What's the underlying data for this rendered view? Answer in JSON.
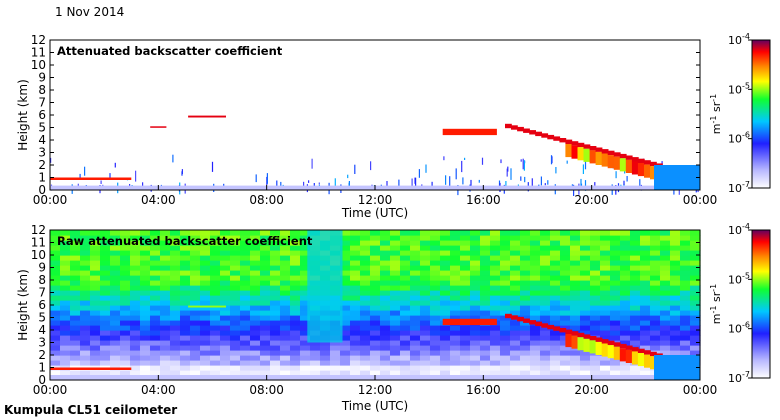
{
  "date_label": "1 Nov 2014",
  "instrument_label": "Kumpula CL51 ceilometer",
  "chart_data": [
    {
      "type": "heatmap",
      "title": "Attenuated backscatter coefficient",
      "xlabel": "Time (UTC)",
      "ylabel": "Height (km)",
      "xticks": [
        "00:00",
        "04:00",
        "08:00",
        "12:00",
        "16:00",
        "20:00",
        "00:00"
      ],
      "xlim_hours": [
        0,
        24
      ],
      "ylim_km": [
        0,
        12
      ],
      "yticks": [
        0,
        1,
        2,
        3,
        4,
        5,
        6,
        7,
        8,
        9,
        10,
        11,
        12
      ],
      "colorbar": {
        "label": "m-1 sr-1",
        "ticks": [
          "10-7",
          "10-6",
          "10-5",
          "10-4"
        ],
        "log_range": [
          -7,
          -4
        ]
      },
      "features": [
        {
          "name": "boundary-layer",
          "t0": 0.0,
          "t1": 24.0,
          "h0": 0.0,
          "h1": 0.35,
          "logb": -6.7
        },
        {
          "name": "low-cloud-early",
          "t0": 0.0,
          "t1": 3.0,
          "h0": 0.8,
          "h1": 1.0,
          "logb": -4.3
        },
        {
          "name": "cloud-0500",
          "t0": 3.7,
          "t1": 4.3,
          "h0": 5.0,
          "h1": 5.1,
          "logb": -4.2
        },
        {
          "name": "cloud-0600",
          "t0": 5.1,
          "t1": 6.5,
          "h0": 5.8,
          "h1": 5.95,
          "logb": -4.2
        },
        {
          "name": "frontal-cloud-a",
          "t0": 14.5,
          "t1": 16.5,
          "h0": 4.4,
          "h1": 4.9,
          "logb": -4.3
        },
        {
          "name": "frontal-cloud-b",
          "t0": 16.8,
          "t1": 22.6,
          "h0": 1.0,
          "h1": 5.3,
          "logb": -5.2
        },
        {
          "name": "rain-shaft",
          "t0": 22.3,
          "t1": 24.0,
          "h0": 0.0,
          "h1": 2.0,
          "logb": -5.8
        }
      ]
    },
    {
      "type": "heatmap",
      "title": "Raw attenuated backscatter coefficient",
      "xlabel": "Time (UTC)",
      "ylabel": "Height (km)",
      "xticks": [
        "00:00",
        "04:00",
        "08:00",
        "12:00",
        "16:00",
        "20:00",
        "00:00"
      ],
      "xlim_hours": [
        0,
        24
      ],
      "ylim_km": [
        0,
        12
      ],
      "yticks": [
        0,
        1,
        2,
        3,
        4,
        5,
        6,
        7,
        8,
        9,
        10,
        11,
        12
      ],
      "colorbar": {
        "label": "m-1 sr-1",
        "ticks": [
          "10-7",
          "10-6",
          "10-5",
          "10-4"
        ],
        "log_range": [
          -7,
          -4
        ]
      },
      "noise_background": "noise increasing with height, green above ~4 km",
      "features": [
        {
          "name": "boundary-layer",
          "t0": 0.0,
          "t1": 24.0,
          "h0": 0.0,
          "h1": 0.4,
          "logb": -6.7
        },
        {
          "name": "low-cloud-early",
          "t0": 0.0,
          "t1": 3.0,
          "h0": 0.8,
          "h1": 1.0,
          "logb": -4.3
        },
        {
          "name": "cloud-0600",
          "t0": 5.1,
          "t1": 6.5,
          "h0": 5.8,
          "h1": 5.95,
          "logb": -5.0
        },
        {
          "name": "noise-column",
          "t0": 9.5,
          "t1": 10.8,
          "h0": 3.0,
          "h1": 12.0,
          "logb": -5.6
        },
        {
          "name": "frontal-cloud-a",
          "t0": 14.5,
          "t1": 16.5,
          "h0": 4.4,
          "h1": 4.9,
          "logb": -4.3
        },
        {
          "name": "frontal-cloud-b",
          "t0": 16.8,
          "t1": 22.6,
          "h0": 1.0,
          "h1": 5.3,
          "logb": -5.2
        },
        {
          "name": "rain-shaft",
          "t0": 22.3,
          "t1": 24.0,
          "h0": 0.0,
          "h1": 2.0,
          "logb": -5.8
        }
      ]
    }
  ]
}
